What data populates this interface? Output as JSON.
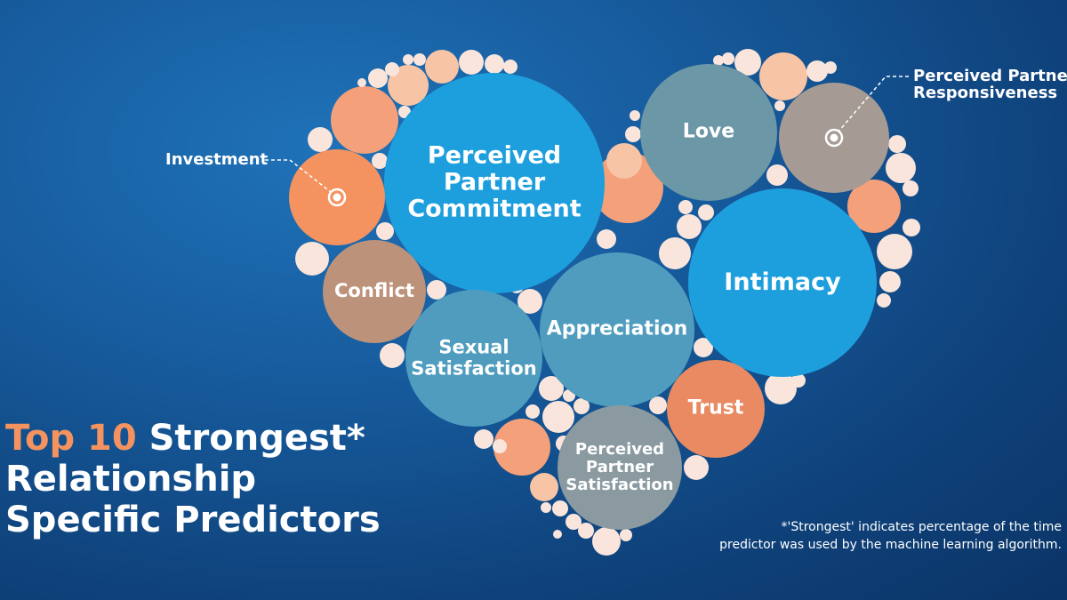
{
  "colors": {
    "blue": "#1e9fdd",
    "teal": "#4f9cbf",
    "slate": "#6c97a6",
    "taupe": "#a59b94",
    "brown": "#bd927a",
    "orange": "#f4935f",
    "orange_trust": "#e98a63",
    "grey": "#8a9aa0",
    "filler_dark": "#f4a07a",
    "filler_mid": "#f7c4a6",
    "filler_light": "#fae5dc"
  },
  "predictors": [
    {
      "id": "perceived-partner-commitment",
      "text": "Perceived\nPartner\nCommitment",
      "color": "blue"
    },
    {
      "id": "love",
      "text": "Love",
      "color": "slate"
    },
    {
      "id": "perceived-partner-responsiveness",
      "text": "",
      "color": "taupe"
    },
    {
      "id": "investment",
      "text": "",
      "color": "orange"
    },
    {
      "id": "conflict",
      "text": "Conflict",
      "color": "brown"
    },
    {
      "id": "sexual-satisfaction",
      "text": "Sexual\nSatisfaction",
      "color": "teal"
    },
    {
      "id": "appreciation",
      "text": "Appreciation",
      "color": "teal"
    },
    {
      "id": "intimacy",
      "text": "Intimacy",
      "color": "blue"
    },
    {
      "id": "trust",
      "text": "Trust",
      "color": "orange_trust"
    },
    {
      "id": "perceived-partner-satisfaction",
      "text": "Perceived\nPartner\nSatisfaction",
      "color": "grey"
    }
  ],
  "callouts": {
    "investment": "Investment",
    "responsiveness": "Perceived Partner\nResponsiveness"
  },
  "title": {
    "accent": "Top 10",
    "line1_rest": "Strongest*",
    "line2": "Relationship",
    "line3": "Specific Predictors"
  },
  "footnote": {
    "line1": "*'Strongest' indicates percentage of the time",
    "line2": "predictor was used by the machine learning algorithm."
  }
}
